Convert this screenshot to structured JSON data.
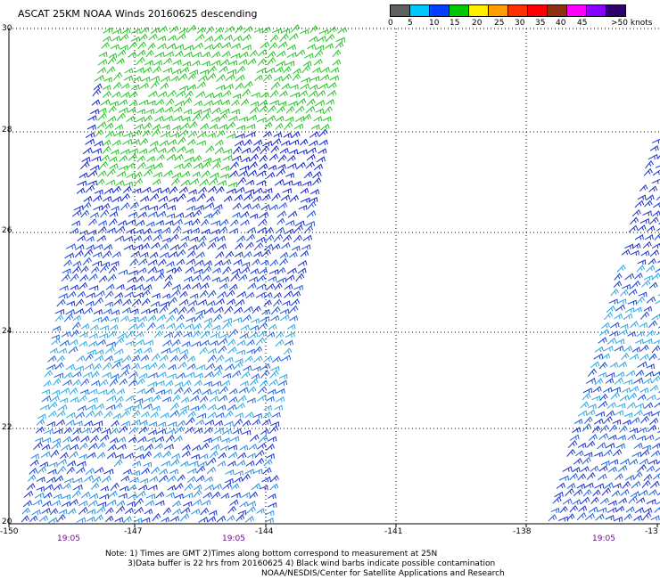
{
  "title": "ASCAT 25KM NOAA Winds 20160625 descending",
  "colorbar": {
    "colors": [
      "#606060",
      "#00c8ff",
      "#0040ff",
      "#00c800",
      "#ffee00",
      "#ffa000",
      "#ff3000",
      "#ff0000",
      "#8b3010",
      "#ff00ff",
      "#8a00ff",
      "#2d006e"
    ],
    "labels": [
      "0",
      "5",
      "10",
      "15",
      "20",
      "25",
      "30",
      "35",
      "40",
      "45",
      ">50 knots"
    ]
  },
  "axes": {
    "lat_labels": [
      "30",
      "28",
      "26",
      "24",
      "22",
      "20"
    ],
    "lon_labels": [
      "-150",
      "-147",
      "-144",
      "-141",
      "-138",
      "-13"
    ],
    "time_labels": [
      "19:05",
      "19:05",
      "19:05"
    ]
  },
  "note": {
    "line1": "Note: 1) Times are GMT 2)Times along bottom correspond to measurement at 25N",
    "line2": "3)Data buffer is 22 hrs from 20160625 4) Black wind barbs indicate possible contamination",
    "line3": "NOAA/NESDIS/Center for Satellite Applications and Research"
  }
}
